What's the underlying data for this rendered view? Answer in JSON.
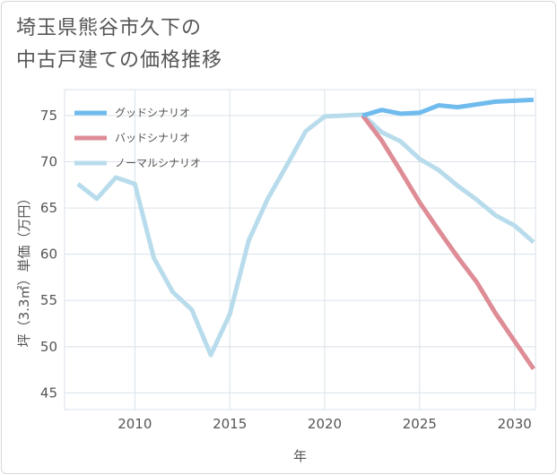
{
  "title_line1": "埼玉県熊谷市久下の",
  "title_line2": "中古戸建ての価格推移",
  "chart_data": {
    "type": "line",
    "xlabel": "年",
    "ylabel": "坪（3.3㎡）単価（万円）",
    "xlim": [
      2006.3,
      2031.1
    ],
    "ylim": [
      43.2,
      77.8
    ],
    "x_ticks": [
      2010,
      2015,
      2020,
      2025,
      2030
    ],
    "y_ticks": [
      45,
      50,
      55,
      60,
      65,
      70,
      75
    ],
    "grid": true,
    "legend_position": "top-left",
    "series": [
      {
        "name": "グッドシナリオ",
        "color": "#6fbbee",
        "x": [
          2022,
          2023,
          2024,
          2025,
          2026,
          2027,
          2028,
          2029,
          2030,
          2031
        ],
        "y": [
          75.0,
          75.6,
          75.2,
          75.3,
          76.1,
          75.9,
          76.2,
          76.5,
          76.6,
          76.7
        ]
      },
      {
        "name": "バッドシナリオ",
        "color": "#de8c95",
        "x": [
          2022,
          2023,
          2024,
          2025,
          2026,
          2027,
          2028,
          2029,
          2030,
          2031
        ],
        "y": [
          75.0,
          72.3,
          69.0,
          65.6,
          62.6,
          59.7,
          57.0,
          53.6,
          50.6,
          47.6
        ]
      },
      {
        "name": "ノーマルシナリオ",
        "color": "#b8dcec",
        "x": [
          2007,
          2008,
          2009,
          2010,
          2011,
          2012,
          2013,
          2014,
          2015,
          2016,
          2017,
          2018,
          2019,
          2020,
          2021,
          2022,
          2023,
          2024,
          2025,
          2026,
          2027,
          2028,
          2029,
          2030,
          2031
        ],
        "y": [
          67.6,
          66.0,
          68.3,
          67.6,
          59.6,
          55.9,
          54.0,
          49.1,
          53.5,
          61.5,
          66.0,
          69.6,
          73.3,
          74.9,
          75.0,
          75.1,
          73.2,
          72.2,
          70.3,
          69.1,
          67.4,
          65.9,
          64.2,
          63.1,
          61.3
        ]
      }
    ]
  }
}
